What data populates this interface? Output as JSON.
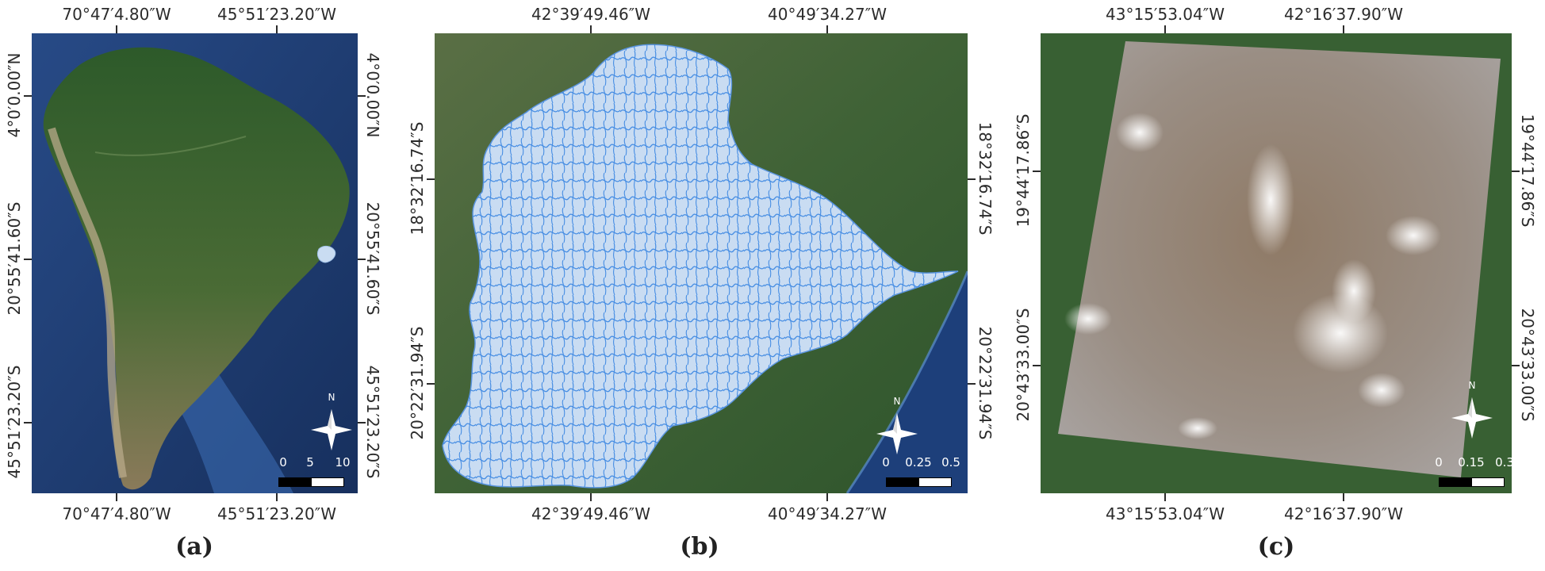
{
  "panels": [
    {
      "caption": "(a)",
      "top_labels": [
        "70°47′4.80″W",
        "45°51′23.20″W"
      ],
      "bottom_labels": [
        "70°47′4.80″W",
        "45°51′23.20″W"
      ],
      "left_labels": [
        "4°0′0.00″N",
        "20°55′41.60″S",
        "45°51′23.20″S"
      ],
      "right_labels": [
        "4°0′0.00″N",
        "20°55′41.60″S",
        "45°51′23.20″S"
      ],
      "scale": [
        "0",
        "5",
        "10"
      ],
      "north": "N"
    },
    {
      "caption": "(b)",
      "top_labels": [
        "42°39′49.46″W",
        "40°49′34.27″W"
      ],
      "bottom_labels": [
        "42°39′49.46″W",
        "40°49′34.27″W"
      ],
      "left_labels": [
        "18°32′16.74″S",
        "20°22′31.94″S"
      ],
      "right_labels": [
        "18°32′16.74″S",
        "20°22′31.94″S"
      ],
      "scale": [
        "0",
        "0.25",
        "0.5"
      ],
      "north": "N"
    },
    {
      "caption": "(c)",
      "top_labels": [
        "43°15′53.04″W",
        "42°16′37.90″W"
      ],
      "bottom_labels": [
        "43°15′53.04″W",
        "42°16′37.90″W"
      ],
      "left_labels": [
        "19°44′17.86″S",
        "20°43′33.00″S"
      ],
      "right_labels": [
        "19°44′17.86″S",
        "20°43′33.00″S"
      ],
      "scale": [
        "0",
        "0.15",
        "0.3"
      ],
      "north": "N"
    }
  ],
  "colors": {
    "ocean": "#1f3d73",
    "land_dark": "#2f5a2a",
    "land_forest": "#3d6b33",
    "basin_fill": "#c9dcf2",
    "river": "#2f7fe0",
    "scene_haze": "#9a8f84"
  }
}
